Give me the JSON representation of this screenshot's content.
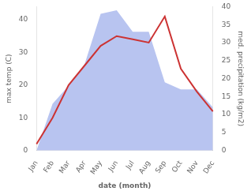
{
  "chart_data": {
    "type": "line",
    "categories": [
      "Jan",
      "Feb",
      "Mar",
      "Apr",
      "May",
      "Jun",
      "Jul",
      "Aug",
      "Sep",
      "Oct",
      "Nov",
      "Dec"
    ],
    "xlabel": "date (month)",
    "ylabel": "max temp (C)",
    "y2label": "med. precipitation (kg/m2)",
    "series": [
      {
        "type": "area",
        "color": "#b8c4f0",
        "axis": "y2",
        "values": [
          0,
          13,
          18,
          24,
          38,
          39,
          33,
          33,
          19,
          17,
          17,
          12
        ]
      },
      {
        "type": "line",
        "color": "#cc3333",
        "values": [
          2,
          10,
          20,
          26,
          32,
          35,
          34,
          33,
          41,
          25,
          18,
          12
        ]
      }
    ],
    "ylim": [
      0,
      44
    ],
    "yticks": [
      0,
      10,
      20,
      30,
      40
    ],
    "y2lim": [
      0,
      40
    ],
    "y2ticks": [
      0,
      5,
      10,
      15,
      20,
      25,
      30,
      35,
      40
    ],
    "grid": false
  }
}
